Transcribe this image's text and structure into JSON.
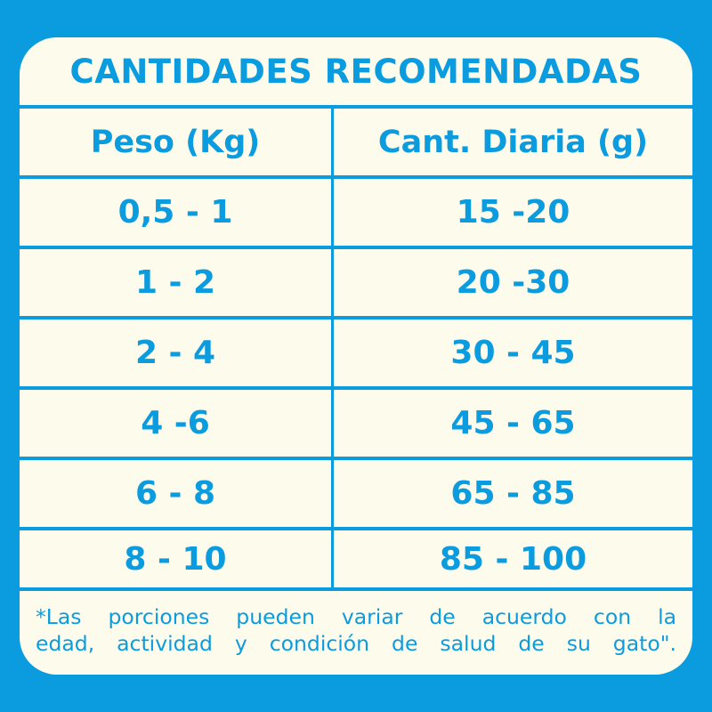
{
  "title": "CANTIDADES RECOMENDADAS",
  "headers": [
    "Peso (Kg)",
    "Cant. Diaria (g)"
  ],
  "rows": [
    [
      "0,5 - 1",
      "15 -20"
    ],
    [
      "1 - 2",
      "20 -30"
    ],
    [
      "2 - 4",
      "30 - 45"
    ],
    [
      "4 -6",
      "45 - 65"
    ],
    [
      "6 - 8",
      "65 - 85"
    ],
    [
      "8 - 10",
      "85 - 100"
    ]
  ],
  "footnote_lines": [
    "*Las porciones pueden variar de acuerdo con la",
    "edad, actividad y condición de salud de su gato\"."
  ],
  "colors": {
    "accent": "#0b9ce0",
    "background": "#fdfbec"
  }
}
